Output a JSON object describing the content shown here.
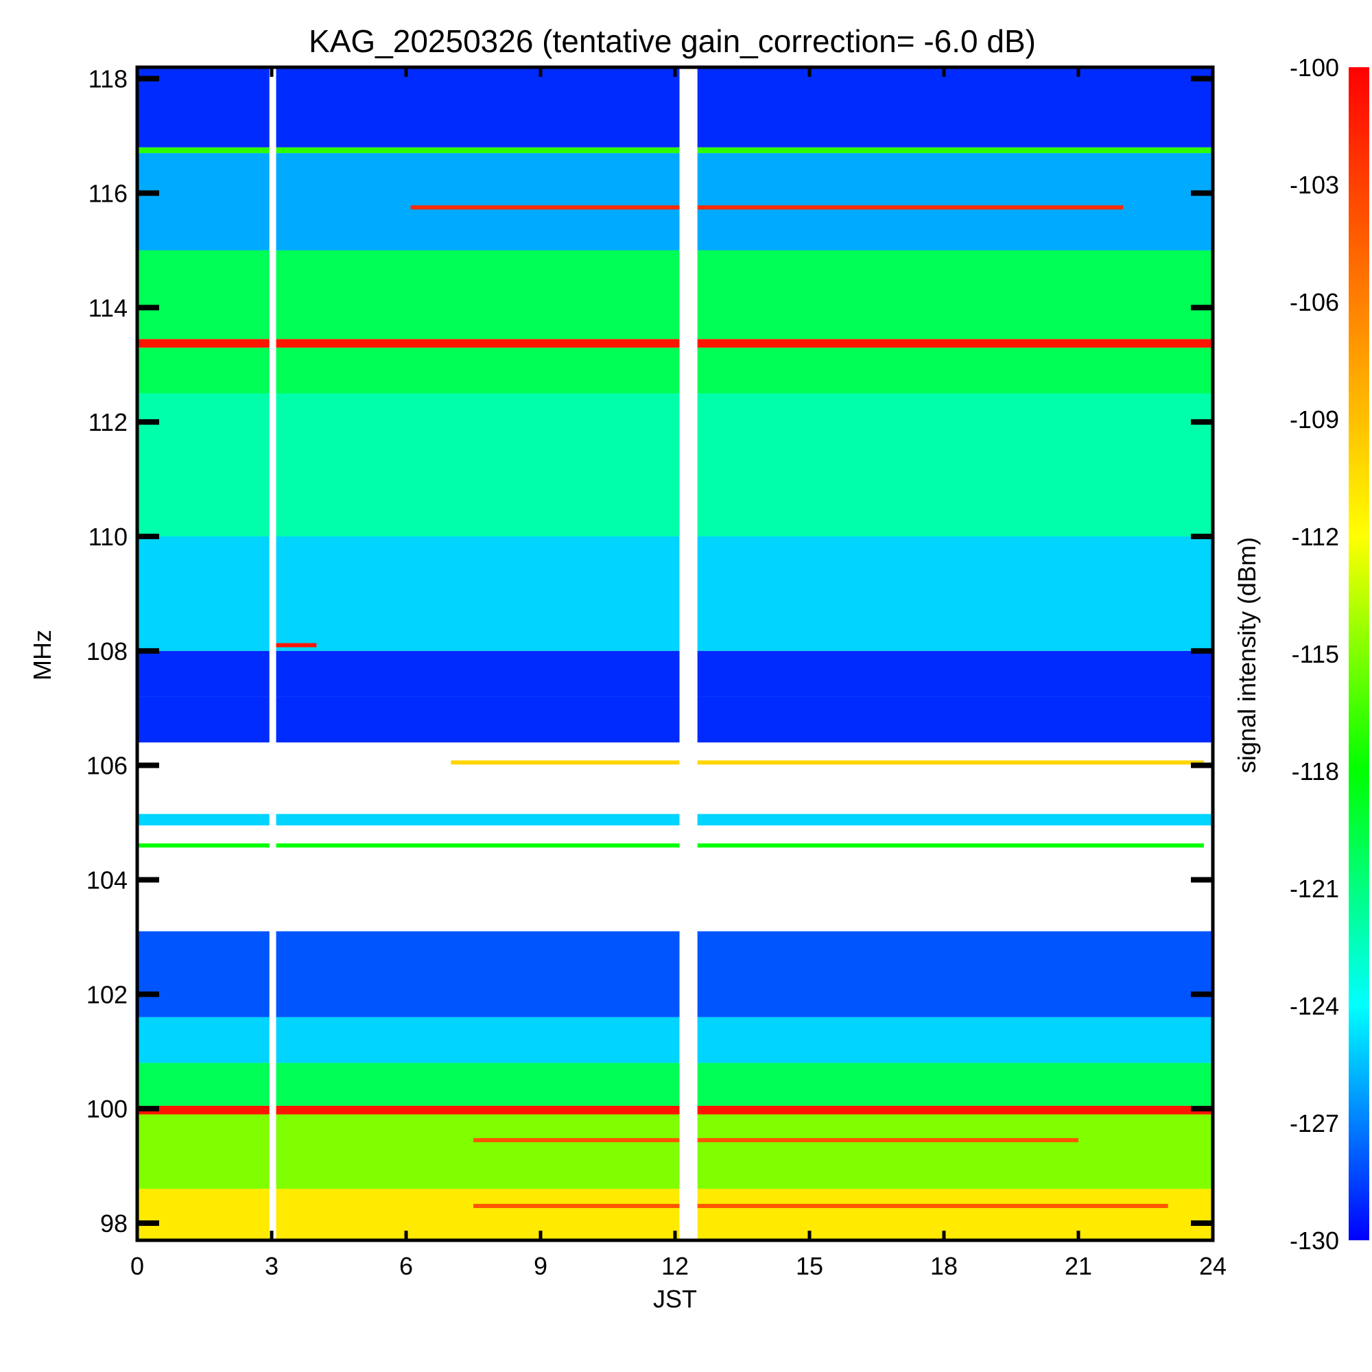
{
  "chart_data": {
    "type": "heatmap",
    "title": "KAG_20250326 (tentative gain_correction= -6.0 dB)",
    "xlabel": "JST",
    "ylabel": "MHz",
    "xlim": [
      0,
      24
    ],
    "ylim": [
      97.7,
      118.2
    ],
    "x_ticks": [
      "0",
      "3",
      "6",
      "9",
      "12",
      "15",
      "18",
      "21",
      "24"
    ],
    "y_ticks": [
      "98",
      "100",
      "102",
      "104",
      "106",
      "108",
      "110",
      "112",
      "114",
      "116",
      "118"
    ],
    "colorbar": {
      "label": "signal intensity (dBm)",
      "min": -130,
      "max": -100,
      "ticks": [
        "-100",
        "-103",
        "-106",
        "-109",
        "-112",
        "-115",
        "-118",
        "-121",
        "-124",
        "-127",
        "-130"
      ],
      "colors": [
        "#0000ff",
        "#00ffff",
        "#00ff00",
        "#ffff00",
        "#ff8000",
        "#ff0000"
      ]
    },
    "bands": [
      {
        "f_low": 97.7,
        "f_high": 98.6,
        "dbm": -111
      },
      {
        "f_low": 98.6,
        "f_high": 99.9,
        "dbm": -115
      },
      {
        "f_low": 99.9,
        "f_high": 100.05,
        "dbm": -101
      },
      {
        "f_low": 100.05,
        "f_high": 100.8,
        "dbm": -120
      },
      {
        "f_low": 100.8,
        "f_high": 101.6,
        "dbm": -125
      },
      {
        "f_low": 101.6,
        "f_high": 103.1,
        "dbm": -128
      },
      {
        "f_low": 104.95,
        "f_high": 105.15,
        "dbm": -125
      },
      {
        "f_low": 106.4,
        "f_high": 107.2,
        "dbm": -129
      },
      {
        "f_low": 107.2,
        "f_high": 108.0,
        "dbm": -129
      },
      {
        "f_low": 108.0,
        "f_high": 110.0,
        "dbm": -125
      },
      {
        "f_low": 110.0,
        "f_high": 112.5,
        "dbm": -122
      },
      {
        "f_low": 112.5,
        "f_high": 113.3,
        "dbm": -120
      },
      {
        "f_low": 113.3,
        "f_high": 113.45,
        "dbm": -101
      },
      {
        "f_low": 113.45,
        "f_high": 115.0,
        "dbm": -120
      },
      {
        "f_low": 115.0,
        "f_high": 116.7,
        "dbm": -126
      },
      {
        "f_low": 116.7,
        "f_high": 116.8,
        "dbm": -117
      },
      {
        "f_low": 116.8,
        "f_high": 118.2,
        "dbm": -129
      }
    ],
    "carriers": [
      {
        "freq": 115.75,
        "t_start": 6.1,
        "t_end": 22.0,
        "dbm": -102
      },
      {
        "freq": 108.1,
        "t_start": 3.0,
        "t_end": 4.0,
        "dbm": -101
      },
      {
        "freq": 106.05,
        "t_start": 7.0,
        "t_end": 23.8,
        "dbm": -110
      },
      {
        "freq": 104.6,
        "t_start": 0.0,
        "t_end": 23.8,
        "dbm": -118
      },
      {
        "freq": 99.45,
        "t_start": 7.5,
        "t_end": 21.0,
        "dbm": -104
      },
      {
        "freq": 98.3,
        "t_start": 7.5,
        "t_end": 23.0,
        "dbm": -104
      }
    ],
    "data_gaps": [
      {
        "t_start": 2.95,
        "t_end": 3.1
      },
      {
        "t_start": 12.1,
        "t_end": 12.5
      }
    ]
  }
}
